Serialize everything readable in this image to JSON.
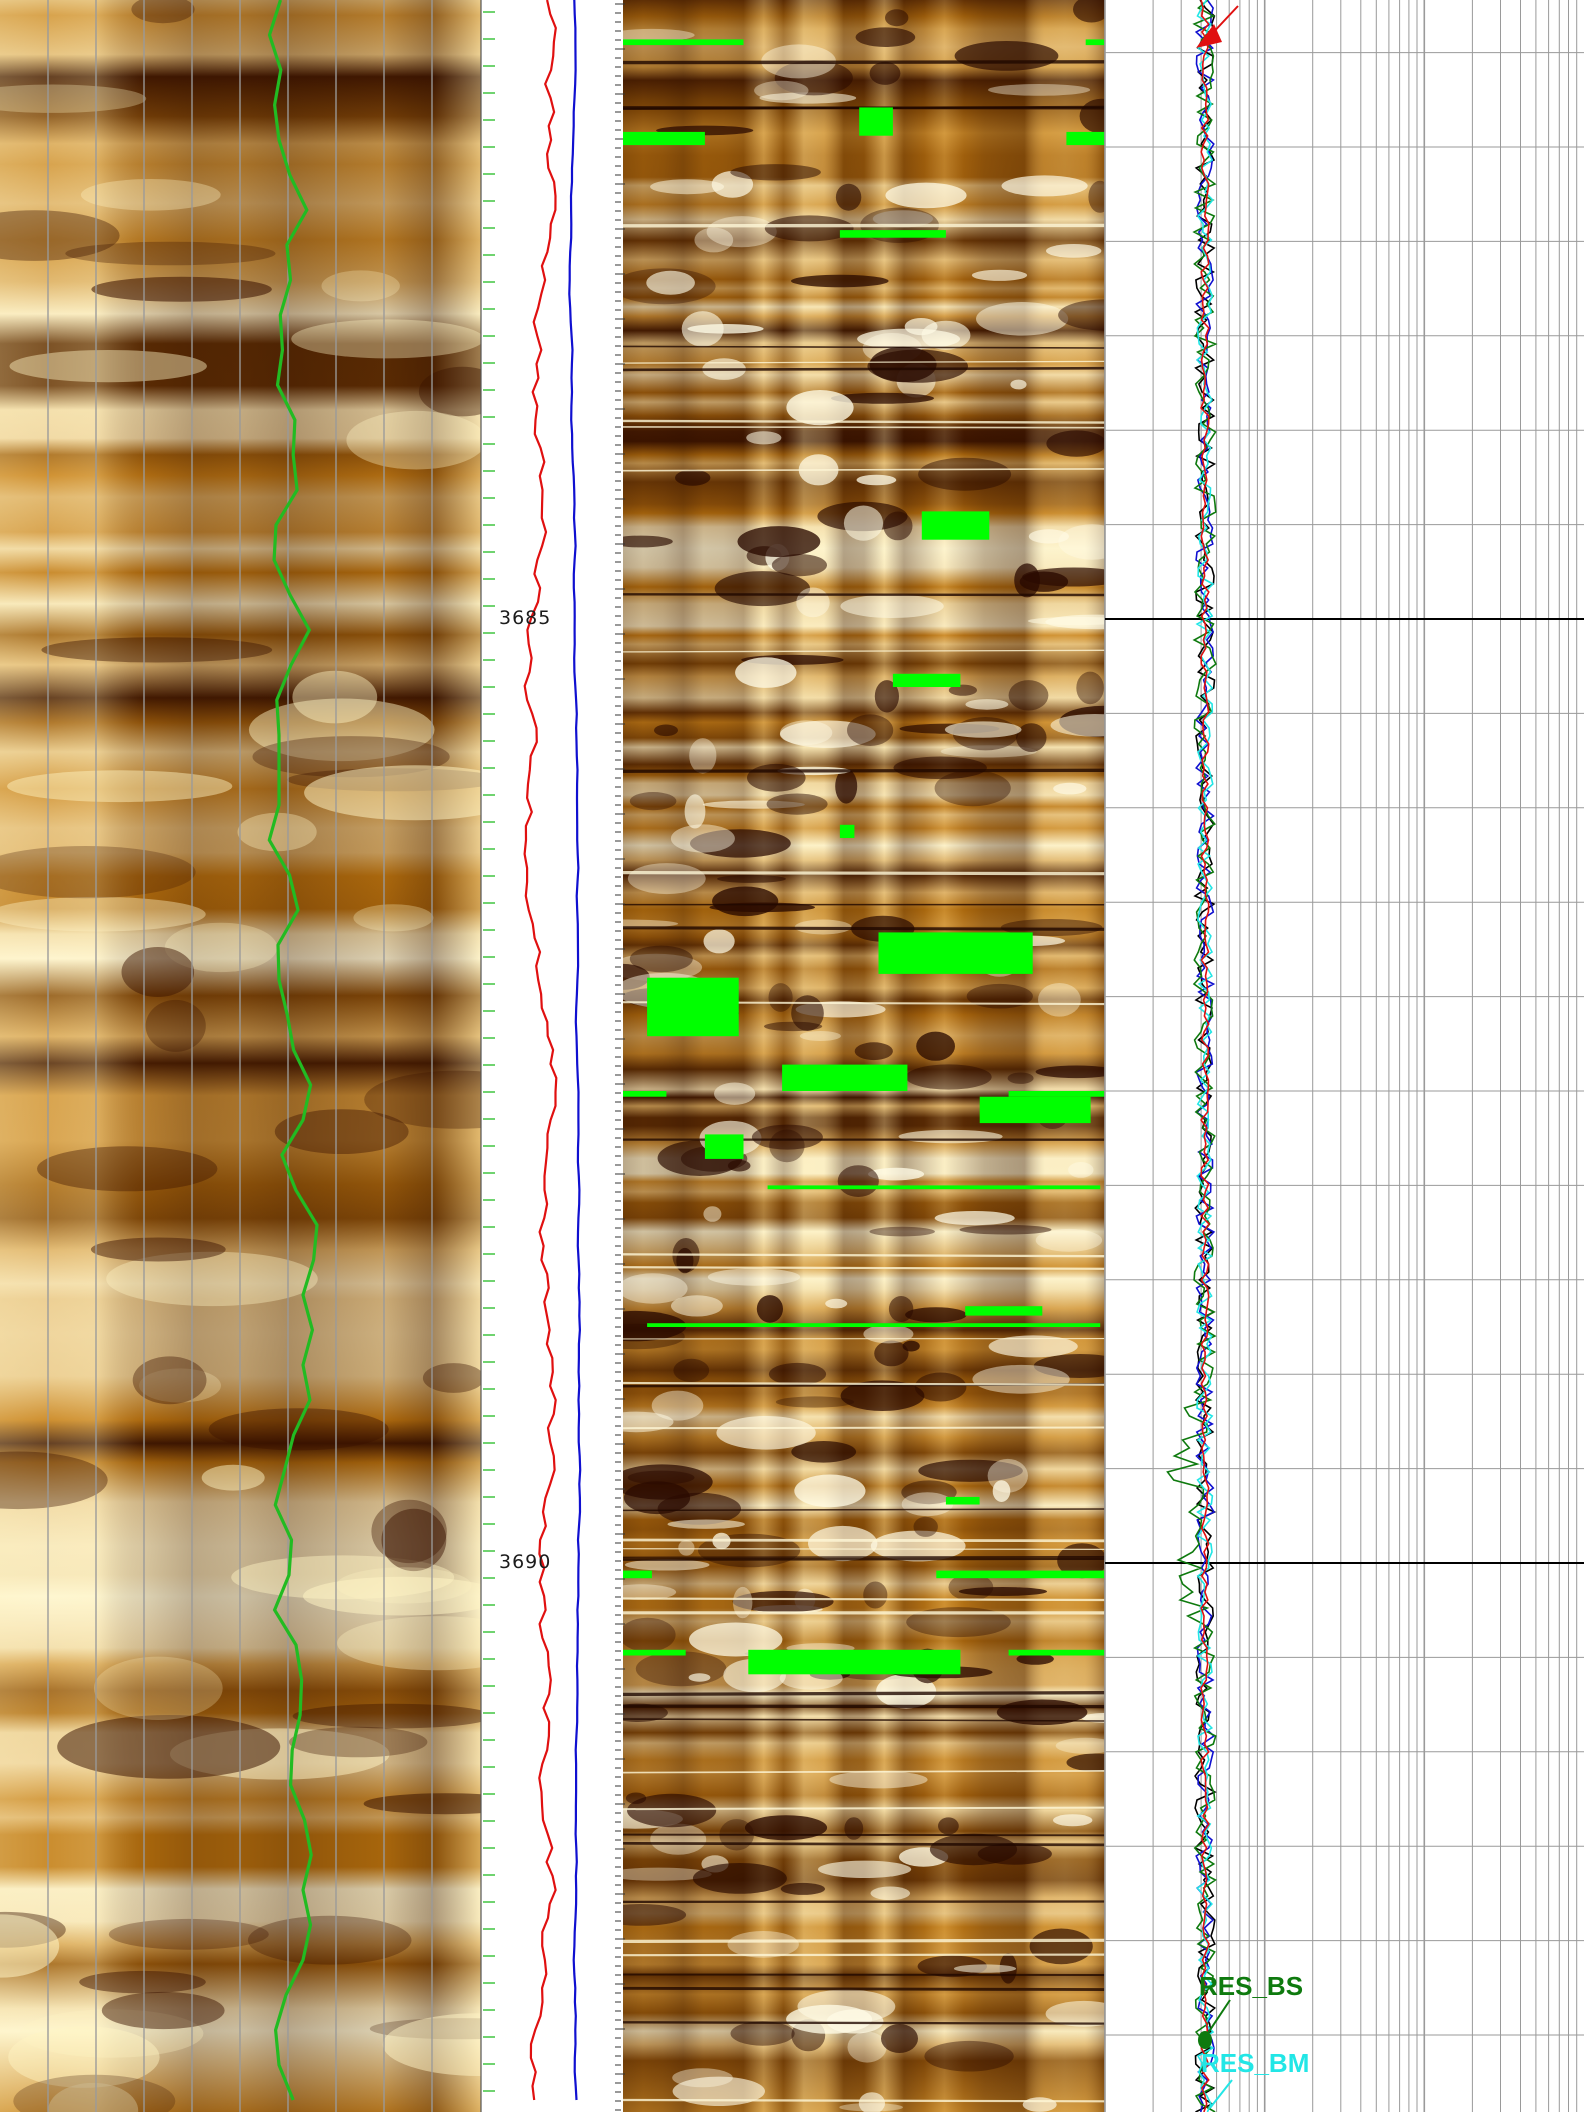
{
  "chart_data": {
    "type": "line",
    "title": "",
    "xlabel": "",
    "ylabel": "",
    "depth_axis": {
      "range": [
        3681.8,
        3693.0
      ],
      "depth_labels": [
        "3685",
        "3690"
      ],
      "labelled_depths": [
        3685,
        3690
      ]
    },
    "colors": {
      "image_dark": "#3c1400",
      "image_mid": "#c47a10",
      "image_light": "#fff8d6",
      "inclusion_green": "#00ff00",
      "dip_curve": "#22bb22",
      "red_curve": "#e01010",
      "blue_curve": "#1010d0",
      "res_bs": "#0e7a0e",
      "res_bm": "#22e6e6",
      "black_curve": "#000000",
      "grid_line": "#9a9a9a",
      "depth_line": "#000000"
    },
    "tracks": [
      {
        "kind": "static-image",
        "name": "static-image-track",
        "grid": true
      },
      {
        "kind": "curves",
        "name": "curve-track",
        "curves": [
          {
            "color_key": "red_curve",
            "x": [
              0.3,
              0.55
            ],
            "depth": [
              3681.8,
              3693.0
            ]
          },
          {
            "color_key": "blue_curve",
            "x": [
              0.62,
              0.7
            ],
            "depth": [
              3681.8,
              3693.0
            ]
          }
        ]
      },
      {
        "kind": "dynamic-image",
        "name": "dynamic-image-track"
      },
      {
        "kind": "resistivity",
        "name": "resistivity-track",
        "scale": "log",
        "grid": true
      }
    ],
    "series": [
      {
        "name": "RES_BS",
        "color_key": "res_bs"
      },
      {
        "name": "RES_BM",
        "color_key": "res_bm"
      }
    ],
    "green_inclusions": [
      {
        "depth_top": 3681.93,
        "depth_bot": 3681.96,
        "x0": 0.0,
        "x1": 0.25
      },
      {
        "depth_top": 3681.93,
        "depth_bot": 3681.96,
        "x0": 0.96,
        "x1": 1.0
      },
      {
        "depth_top": 3682.29,
        "depth_bot": 3682.44,
        "x0": 0.49,
        "x1": 0.56
      },
      {
        "depth_top": 3682.42,
        "depth_bot": 3682.49,
        "x0": 0.0,
        "x1": 0.17
      },
      {
        "depth_top": 3682.42,
        "depth_bot": 3682.49,
        "x0": 0.92,
        "x1": 1.0
      },
      {
        "depth_top": 3682.94,
        "depth_bot": 3682.98,
        "x0": 0.45,
        "x1": 0.67
      },
      {
        "depth_top": 3684.43,
        "depth_bot": 3684.58,
        "x0": 0.62,
        "x1": 0.76
      },
      {
        "depth_top": 3685.29,
        "depth_bot": 3685.36,
        "x0": 0.56,
        "x1": 0.7
      },
      {
        "depth_top": 3686.09,
        "depth_bot": 3686.16,
        "x0": 0.45,
        "x1": 0.48
      },
      {
        "depth_top": 3686.66,
        "depth_bot": 3686.88,
        "x0": 0.53,
        "x1": 0.85
      },
      {
        "depth_top": 3686.9,
        "depth_bot": 3687.21,
        "x0": 0.05,
        "x1": 0.24
      },
      {
        "depth_top": 3687.36,
        "depth_bot": 3687.5,
        "x0": 0.33,
        "x1": 0.59
      },
      {
        "depth_top": 3687.5,
        "depth_bot": 3687.53,
        "x0": 0.0,
        "x1": 0.09
      },
      {
        "depth_top": 3687.5,
        "depth_bot": 3687.53,
        "x0": 0.8,
        "x1": 1.0
      },
      {
        "depth_top": 3687.53,
        "depth_bot": 3687.67,
        "x0": 0.74,
        "x1": 0.97
      },
      {
        "depth_top": 3687.73,
        "depth_bot": 3687.86,
        "x0": 0.17,
        "x1": 0.25
      },
      {
        "depth_top": 3688.0,
        "depth_bot": 3688.02,
        "x0": 0.3,
        "x1": 0.99
      },
      {
        "depth_top": 3688.64,
        "depth_bot": 3688.69,
        "x0": 0.71,
        "x1": 0.87
      },
      {
        "depth_top": 3688.73,
        "depth_bot": 3688.75,
        "x0": 0.05,
        "x1": 0.99
      },
      {
        "depth_top": 3689.65,
        "depth_bot": 3689.69,
        "x0": 0.67,
        "x1": 0.74
      },
      {
        "depth_top": 3690.04,
        "depth_bot": 3690.08,
        "x0": 0.0,
        "x1": 0.06
      },
      {
        "depth_top": 3690.04,
        "depth_bot": 3690.08,
        "x0": 0.65,
        "x1": 1.0
      },
      {
        "depth_top": 3690.46,
        "depth_bot": 3690.49,
        "x0": 0.0,
        "x1": 0.13
      },
      {
        "depth_top": 3690.46,
        "depth_bot": 3690.49,
        "x0": 0.8,
        "x1": 1.0
      },
      {
        "depth_top": 3690.46,
        "depth_bot": 3690.59,
        "x0": 0.26,
        "x1": 0.7
      }
    ]
  }
}
